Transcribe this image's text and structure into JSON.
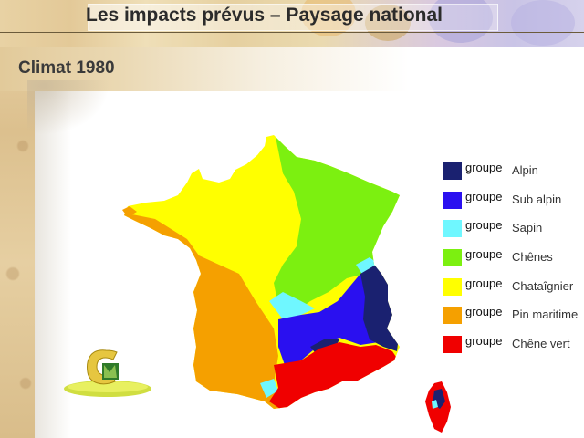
{
  "header": {
    "title": "Les impacts prévus – Paysage national"
  },
  "section": {
    "title": "Climat 1980"
  },
  "legend": {
    "items": [
      {
        "group": "groupe",
        "name": "Alpin",
        "color": "#1a2170"
      },
      {
        "group": "groupe",
        "name": "Sub alpin",
        "color": "#2a10f0"
      },
      {
        "group": "groupe",
        "name": "Sapin",
        "color": "#6ff7ff"
      },
      {
        "group": "groupe",
        "name": "Chênes",
        "color": "#7cf010"
      },
      {
        "group": "groupe",
        "name": "Chataîgnier",
        "color": "#ffff00"
      },
      {
        "group": "groupe",
        "name": "Pin maritime",
        "color": "#f5a000"
      },
      {
        "group": "groupe",
        "name": "Chêne vert",
        "color": "#f00000"
      }
    ]
  },
  "map": {
    "region": "France",
    "zones_colors": {
      "alpin": "#1a2170",
      "sub_alpin": "#2a10f0",
      "sapin": "#6ff7ff",
      "chenes": "#7cf010",
      "chataignier": "#ffff00",
      "pin_maritime": "#f5a000",
      "chene_vert": "#f00000"
    }
  },
  "logo": {
    "icon": "stylized-C-logo"
  }
}
